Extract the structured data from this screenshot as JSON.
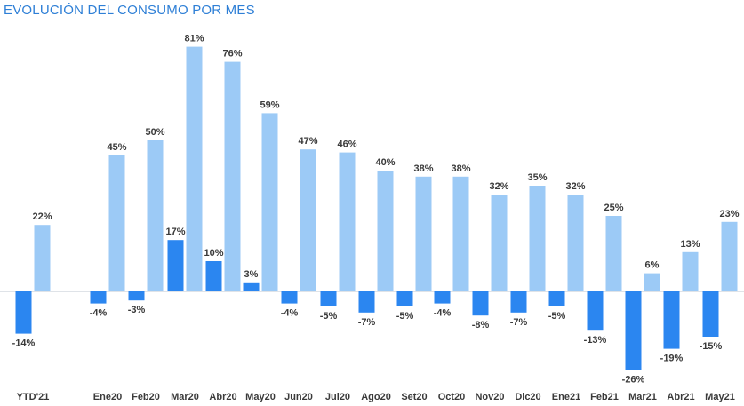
{
  "chart_data": {
    "type": "bar",
    "title": "EVOLUCIÓN DEL CONSUMO POR MES",
    "xlabel": "",
    "ylabel": "",
    "categories": [
      "YTD'21",
      "Ene20",
      "Feb20",
      "Mar20",
      "Abr20",
      "May20",
      "Jun20",
      "Jul20",
      "Ago20",
      "Set20",
      "Oct20",
      "Nov20",
      "Dic20",
      "Ene21",
      "Feb21",
      "Mar21",
      "Abr21",
      "May21"
    ],
    "series": [
      {
        "color": "#2b86f0",
        "values": [
          -14,
          -4,
          -3,
          17,
          10,
          3,
          -4,
          -5,
          -7,
          -5,
          -4,
          -8,
          -7,
          -5,
          -13,
          -26,
          -19,
          -15
        ],
        "labels": [
          "-14%",
          "-4%",
          "-3%",
          "17%",
          "10%",
          "3%",
          "-4%",
          "-5%",
          "-7%",
          "-5%",
          "-4%",
          "-8%",
          "-7%",
          "-5%",
          "-13%",
          "-26%",
          "-19%",
          "-15%"
        ]
      },
      {
        "color": "#9ccaf6",
        "values": [
          22,
          45,
          50,
          81,
          76,
          59,
          47,
          46,
          40,
          38,
          38,
          32,
          35,
          32,
          25,
          6,
          13,
          23
        ],
        "labels": [
          "22%",
          "45%",
          "50%",
          "81%",
          "76%",
          "59%",
          "47%",
          "46%",
          "40%",
          "38%",
          "38%",
          "32%",
          "35%",
          "32%",
          "25%",
          "6%",
          "13%",
          "23%"
        ]
      }
    ],
    "ylim": [
      -26,
      81
    ],
    "grid": false,
    "legend": "none"
  }
}
